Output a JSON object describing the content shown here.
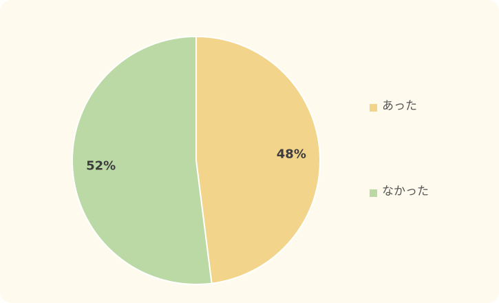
{
  "chart_data": {
    "type": "pie",
    "categories": [
      "あった",
      "なかった"
    ],
    "values": [
      48,
      52
    ],
    "value_labels": [
      "48%",
      "52%"
    ],
    "colors": [
      "#f2d48a",
      "#bad9a5"
    ],
    "legend": "right"
  }
}
